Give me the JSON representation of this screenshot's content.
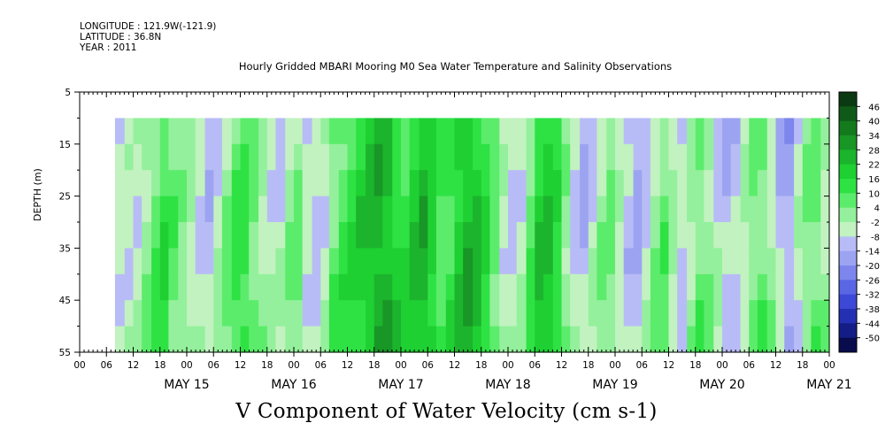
{
  "meta": {
    "longitude": "LONGITUDE : 121.9W(-121.9)",
    "latitude": "LATITUDE : 36.8N",
    "year": "YEAR : 2011"
  },
  "title": "Hourly Gridded MBARI Mooring M0 Sea Water Temperature and Salinity Observations",
  "chart_data": {
    "type": "heatmap",
    "title": "Hourly Gridded MBARI Mooring M0 Sea Water Temperature and Salinity Observations",
    "variable_label": "V Component of Water Velocity (cm s-1)",
    "ylabel": "DEPTH (m)",
    "ylim": [
      5,
      55
    ],
    "y_inverted": true,
    "y_ticks": [
      5,
      15,
      25,
      35,
      45,
      55
    ],
    "x_hour_ticks": [
      "00",
      "06",
      "12",
      "18",
      "00",
      "06",
      "12",
      "18",
      "00",
      "06",
      "12",
      "18",
      "00",
      "06",
      "12",
      "18",
      "00",
      "06",
      "12",
      "18",
      "00",
      "06",
      "12",
      "18",
      "00",
      "06",
      "12",
      "18",
      "00"
    ],
    "x_day_labels": [
      "MAY 15",
      "MAY 16",
      "MAY 17",
      "MAY 18",
      "MAY 19",
      "MAY 20",
      "MAY 21"
    ],
    "data_start": "MAY 14 08:00",
    "depth_range": [
      10,
      55
    ],
    "colorbar_levels": [
      "46",
      "40",
      "34",
      "28",
      "22",
      "16",
      "10",
      "4",
      "-2",
      "-8",
      "-14",
      "-20",
      "-26",
      "-32",
      "-38",
      "-44",
      "-50"
    ],
    "colorbar_colors": [
      "#0b3a12",
      "#0f5a18",
      "#147a1e",
      "#189626",
      "#1cb42c",
      "#1ed032",
      "#2ee244",
      "#5cec6c",
      "#94f09c",
      "#c2f2c0",
      "#b8bcf6",
      "#9ca4f2",
      "#7c86ec",
      "#5a66e4",
      "#3c48d6",
      "#2430b4",
      "#141c86",
      "#080c4c"
    ],
    "columns": [
      {
        "day": 14.33,
        "v": -6
      },
      {
        "day": 14.42,
        "v": -5
      },
      {
        "day": 14.5,
        "v": -4
      },
      {
        "day": 14.58,
        "v": 2
      },
      {
        "day": 14.67,
        "v": 8
      },
      {
        "day": 14.75,
        "v": 12
      },
      {
        "day": 14.83,
        "v": 6
      },
      {
        "day": 14.92,
        "v": 2
      },
      {
        "day": 15.0,
        "v": -2
      },
      {
        "day": 15.08,
        "v": -6
      },
      {
        "day": 15.17,
        "v": -10
      },
      {
        "day": 15.25,
        "v": -4
      },
      {
        "day": 15.33,
        "v": 4
      },
      {
        "day": 15.42,
        "v": 10
      },
      {
        "day": 15.5,
        "v": 12
      },
      {
        "day": 15.58,
        "v": 6
      },
      {
        "day": 15.67,
        "v": 0
      },
      {
        "day": 15.75,
        "v": -4
      },
      {
        "day": 15.83,
        "v": -6
      },
      {
        "day": 15.92,
        "v": 2
      },
      {
        "day": 16.0,
        "v": 4
      },
      {
        "day": 16.08,
        "v": -6
      },
      {
        "day": 16.17,
        "v": -8
      },
      {
        "day": 16.25,
        "v": -4
      },
      {
        "day": 16.33,
        "v": 6
      },
      {
        "day": 16.42,
        "v": 10
      },
      {
        "day": 16.5,
        "v": 14
      },
      {
        "day": 16.58,
        "v": 18
      },
      {
        "day": 16.67,
        "v": 22
      },
      {
        "day": 16.75,
        "v": 26
      },
      {
        "day": 16.83,
        "v": 24
      },
      {
        "day": 16.92,
        "v": 16
      },
      {
        "day": 17.0,
        "v": 14
      },
      {
        "day": 17.08,
        "v": 20
      },
      {
        "day": 17.17,
        "v": 24
      },
      {
        "day": 17.25,
        "v": 18
      },
      {
        "day": 17.33,
        "v": 10
      },
      {
        "day": 17.42,
        "v": 12
      },
      {
        "day": 17.5,
        "v": 20
      },
      {
        "day": 17.58,
        "v": 24
      },
      {
        "day": 17.67,
        "v": 22
      },
      {
        "day": 17.75,
        "v": 14
      },
      {
        "day": 17.83,
        "v": 6
      },
      {
        "day": 17.92,
        "v": -4
      },
      {
        "day": 18.0,
        "v": -8
      },
      {
        "day": 18.08,
        "v": -4
      },
      {
        "day": 18.17,
        "v": 8
      },
      {
        "day": 18.25,
        "v": 18
      },
      {
        "day": 18.33,
        "v": 20
      },
      {
        "day": 18.42,
        "v": 14
      },
      {
        "day": 18.5,
        "v": 2
      },
      {
        "day": 18.58,
        "v": -8
      },
      {
        "day": 18.67,
        "v": -12
      },
      {
        "day": 18.75,
        "v": -6
      },
      {
        "day": 18.83,
        "v": 0
      },
      {
        "day": 18.92,
        "v": 4
      },
      {
        "day": 19.0,
        "v": -4
      },
      {
        "day": 19.08,
        "v": -10
      },
      {
        "day": 19.17,
        "v": -14
      },
      {
        "day": 19.25,
        "v": -8
      },
      {
        "day": 19.33,
        "v": 2
      },
      {
        "day": 19.42,
        "v": 6
      },
      {
        "day": 19.5,
        "v": -2
      },
      {
        "day": 19.58,
        "v": -8
      },
      {
        "day": 19.67,
        "v": 0
      },
      {
        "day": 19.75,
        "v": 6
      },
      {
        "day": 19.83,
        "v": 2
      },
      {
        "day": 19.92,
        "v": -6
      },
      {
        "day": 20.0,
        "v": -12
      },
      {
        "day": 20.08,
        "v": -10
      },
      {
        "day": 20.17,
        "v": -4
      },
      {
        "day": 20.25,
        "v": 4
      },
      {
        "day": 20.33,
        "v": 6
      },
      {
        "day": 20.42,
        "v": -2
      },
      {
        "day": 20.5,
        "v": -10
      },
      {
        "day": 20.58,
        "v": -14
      },
      {
        "day": 20.67,
        "v": -6
      },
      {
        "day": 20.75,
        "v": 2
      },
      {
        "day": 20.83,
        "v": 6
      },
      {
        "day": 20.92,
        "v": 0
      },
      {
        "day": 21.0,
        "v": -8
      }
    ]
  },
  "colors": {
    "background": "#ffffff",
    "axis": "#000000"
  }
}
